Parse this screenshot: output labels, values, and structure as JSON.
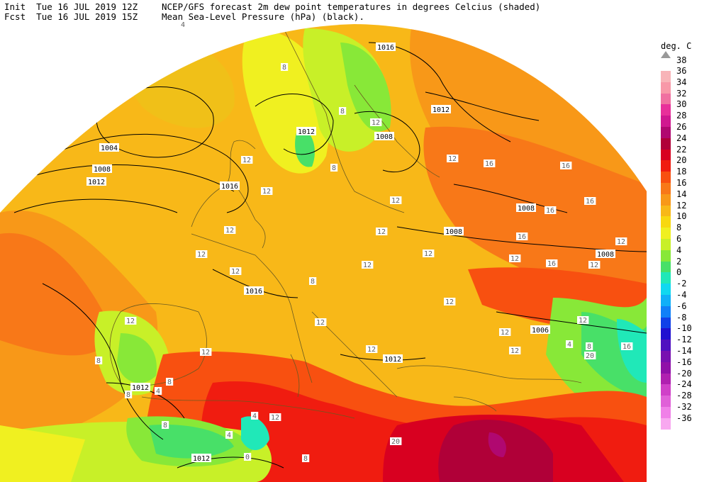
{
  "header": {
    "init_label": "Init",
    "init_time": "Tue 16 JUL 2019 12Z",
    "fcst_label": "Fcst",
    "fcst_time": "Tue 16 JUL 2019 15Z",
    "title_line1": "NCEP/GFS forecast 2m dew point temperatures in degrees Celcius (shaded)",
    "title_line2": "Mean Sea-Level Pressure (hPa) (black)."
  },
  "legend": {
    "unit": "deg. C",
    "top_value": "38",
    "entries": [
      {
        "label": "36",
        "color": "#f8b4b8"
      },
      {
        "label": "34",
        "color": "#f898a8"
      },
      {
        "label": "32",
        "color": "#f070a0"
      },
      {
        "label": "30",
        "color": "#e8309a"
      },
      {
        "label": "28",
        "color": "#d01890"
      },
      {
        "label": "26",
        "color": "#b00870"
      },
      {
        "label": "24",
        "color": "#b00038"
      },
      {
        "label": "22",
        "color": "#d80020"
      },
      {
        "label": "20",
        "color": "#f01c10"
      },
      {
        "label": "18",
        "color": "#f85010"
      },
      {
        "label": "16",
        "color": "#f87818"
      },
      {
        "label": "14",
        "color": "#f89818"
      },
      {
        "label": "12",
        "color": "#f8b818"
      },
      {
        "label": "10",
        "color": "#f8d810"
      },
      {
        "label": "8",
        "color": "#f0f020"
      },
      {
        "label": "6",
        "color": "#c8f028"
      },
      {
        "label": "4",
        "color": "#88e838"
      },
      {
        "label": "2",
        "color": "#48e068"
      },
      {
        "label": "0",
        "color": "#20e8b8"
      },
      {
        "label": "-2",
        "color": "#10d8f0"
      },
      {
        "label": "-4",
        "color": "#10b0f8"
      },
      {
        "label": "-6",
        "color": "#1080f8"
      },
      {
        "label": "-8",
        "color": "#1040e8"
      },
      {
        "label": "-10",
        "color": "#2010d0"
      },
      {
        "label": "-12",
        "color": "#5010c0"
      },
      {
        "label": "-14",
        "color": "#7810b0"
      },
      {
        "label": "-16",
        "color": "#9010a8"
      },
      {
        "label": "-20",
        "color": "#b020b0"
      },
      {
        "label": "-24",
        "color": "#d040c8"
      },
      {
        "label": "-28",
        "color": "#e060d8"
      },
      {
        "label": "-32",
        "color": "#f080e8"
      },
      {
        "label": "-36",
        "color": "#f8a8f0"
      }
    ]
  },
  "map": {
    "pressure_labels": [
      "1016",
      "1012",
      "1004",
      "1008",
      "1012",
      "1016",
      "1016",
      "1008",
      "1008",
      "1008",
      "1006",
      "1008",
      "1012",
      "1012",
      "1012",
      "1012"
    ],
    "dewpoint_labels": [
      "4",
      "8",
      "12",
      "12",
      "12",
      "8",
      "8",
      "12",
      "16",
      "16",
      "12",
      "12",
      "16",
      "16",
      "12",
      "16",
      "12",
      "12",
      "12",
      "12",
      "8",
      "12",
      "12",
      "12",
      "12",
      "12",
      "12",
      "8",
      "12",
      "12",
      "16",
      "12",
      "4",
      "8",
      "16",
      "20",
      "12",
      "12",
      "4",
      "8",
      "4",
      "0",
      "20",
      "8",
      "4",
      "12",
      "8",
      "8"
    ]
  }
}
